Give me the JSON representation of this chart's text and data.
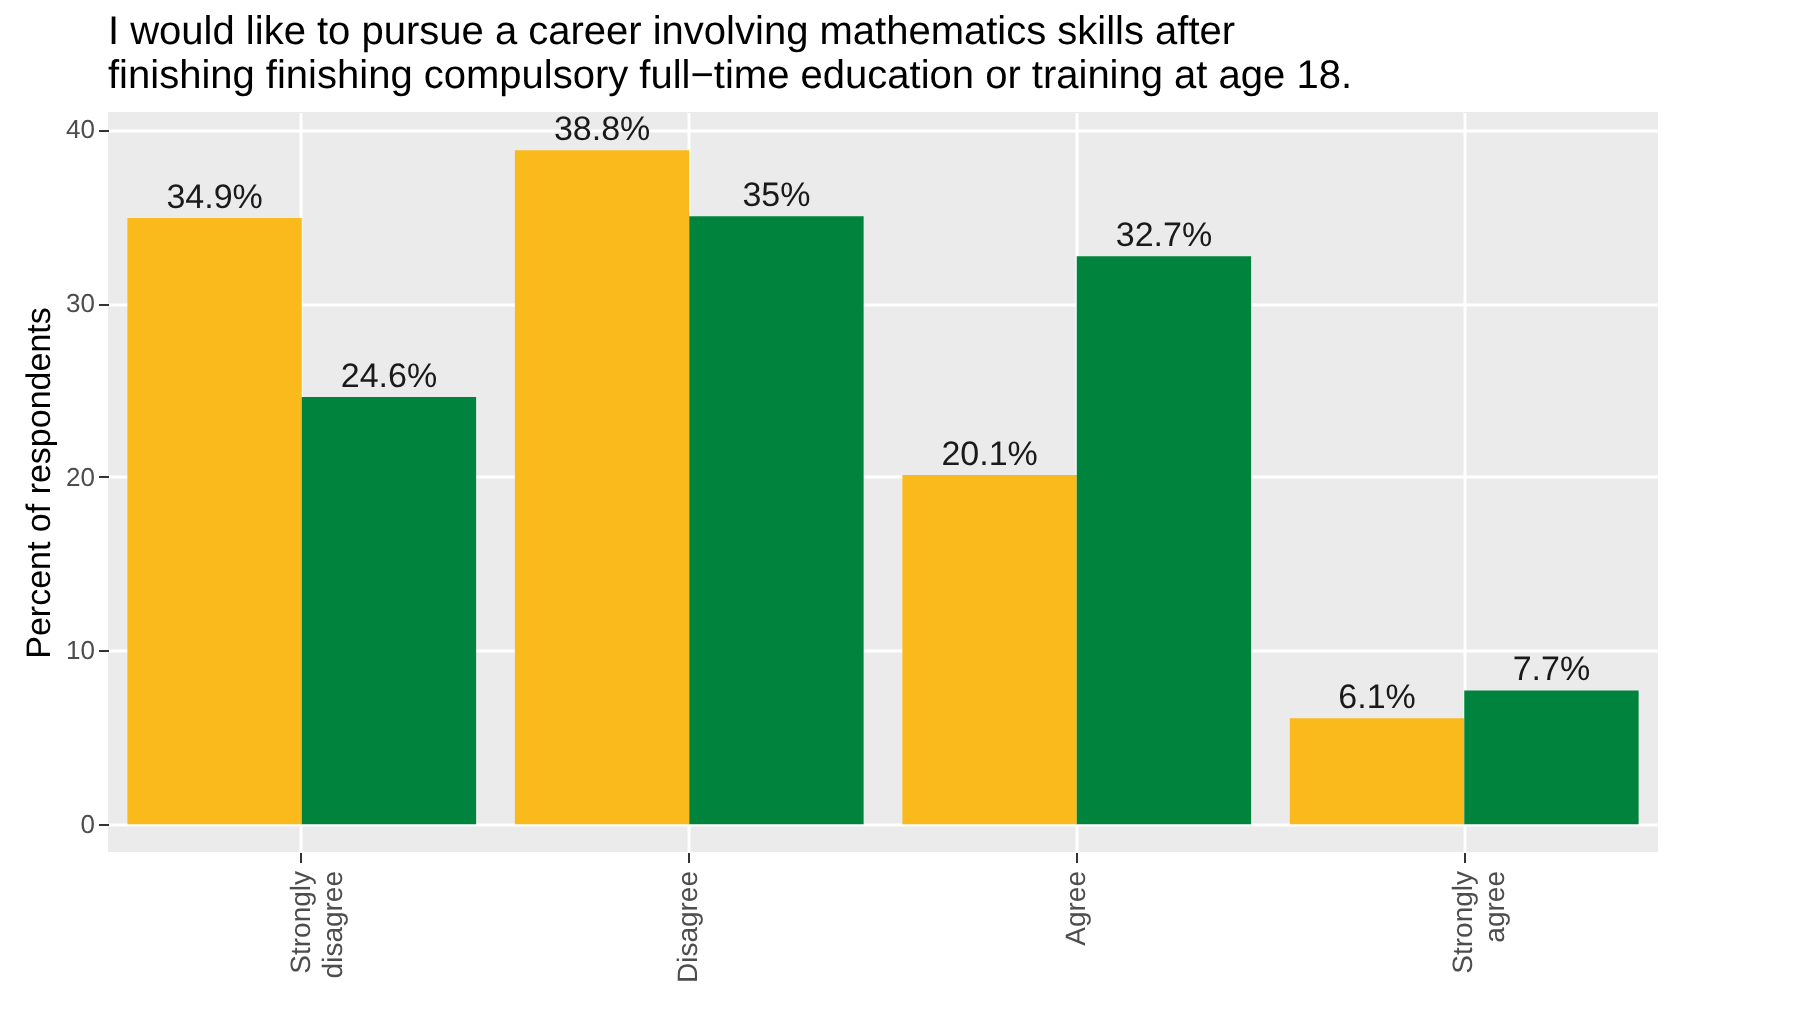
{
  "chart_data": {
    "type": "bar",
    "title": "I would like to pursue a career involving mathematics skills after finishing finishing compulsory full−time education or training at age 18.",
    "ylabel": "Percent of respondents",
    "categories": [
      "Strongly disagree",
      "Disagree",
      "Agree",
      "Strongly agree"
    ],
    "series": [
      {
        "color": "#fbba1c",
        "values": [
          34.9,
          38.8,
          20.1,
          6.1
        ],
        "value_labels": [
          "34.9%",
          "38.8%",
          "20.1%",
          "6.1%"
        ]
      },
      {
        "color": "#00843d",
        "values": [
          24.6,
          35,
          32.7,
          7.7
        ],
        "value_labels": [
          "24.6%",
          "35%",
          "32.7%",
          "7.7%"
        ]
      }
    ],
    "ylim": [
      -1.6,
      41
    ],
    "yticks": [
      0,
      10,
      20,
      30,
      40
    ],
    "grid": true,
    "legend": false
  }
}
